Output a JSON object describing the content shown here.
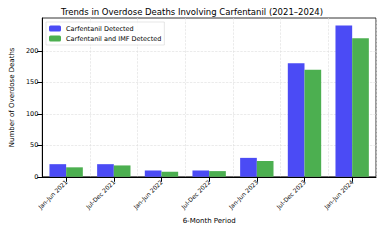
{
  "chart_data": {
    "type": "bar",
    "title": "Trends in Overdose Deaths Involving Carfentanil (2021–2024)",
    "x_label": "6-Month Period",
    "y_label": "Number of Overdose Deaths",
    "categories": [
      "Jan-Jun 2021",
      "Jul-Dec 2021",
      "Jan-Jun 2022",
      "Jul-Dec 2022",
      "Jan-Jun 2023",
      "Jul-Dec 2023",
      "Jan-Jun 2024"
    ],
    "series": [
      {
        "name": "Carfentanil Detected",
        "color": "#4b4bf5",
        "values": [
          20,
          20,
          10,
          10,
          30,
          180,
          240
        ]
      },
      {
        "name": "Carfentanil and IMF Detected",
        "color": "#4caf50",
        "values": [
          15,
          18,
          8,
          9,
          25,
          170,
          220
        ]
      }
    ],
    "ylim": [
      0,
      252
    ],
    "yticks": [
      0,
      50,
      100,
      150,
      200
    ],
    "grid": true,
    "legend": "upper left"
  }
}
